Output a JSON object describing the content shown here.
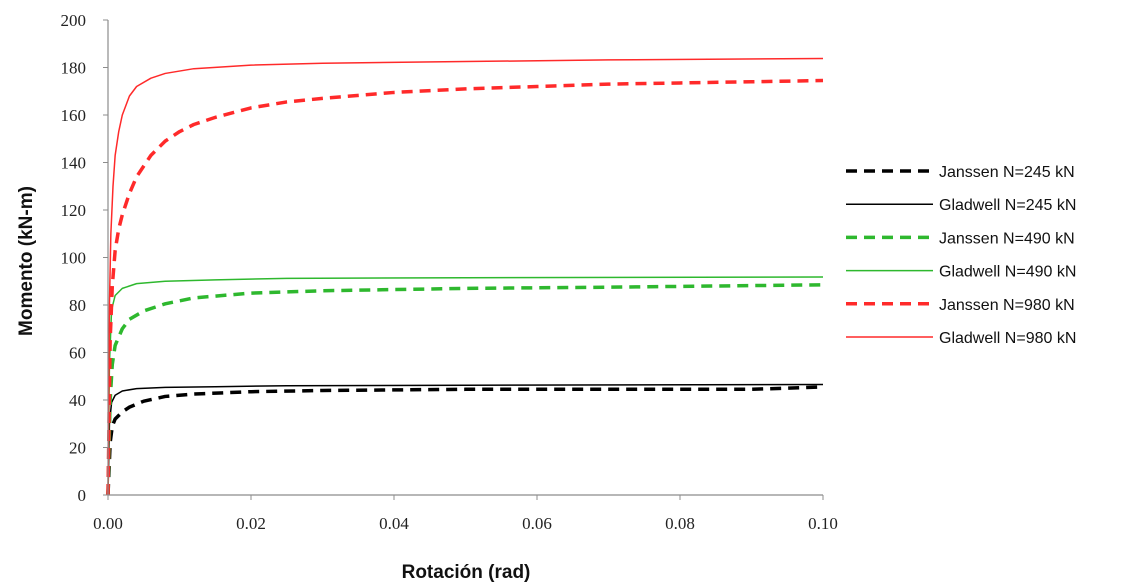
{
  "chart_data": {
    "type": "line",
    "title": "",
    "xlabel": "Rotación (rad)",
    "ylabel": "Momento (kN-m)",
    "xlim": [
      0,
      0.1
    ],
    "ylim": [
      0,
      200
    ],
    "x_ticks": [
      "0.00",
      "0.02",
      "0.04",
      "0.06",
      "0.08",
      "0.10"
    ],
    "y_ticks": [
      "0",
      "20",
      "40",
      "60",
      "80",
      "100",
      "120",
      "140",
      "160",
      "180",
      "200"
    ],
    "grid": false,
    "legend_position": "right",
    "series": [
      {
        "name": "Janssen N=245 kN",
        "color": "#000000",
        "style": "dashed",
        "x": [
          0,
          0.0003,
          0.0006,
          0.001,
          0.002,
          0.003,
          0.005,
          0.008,
          0.012,
          0.02,
          0.03,
          0.05,
          0.07,
          0.09,
          0.1
        ],
        "y": [
          0,
          22,
          29,
          32,
          35,
          37,
          39.5,
          41.5,
          42.5,
          43.5,
          44,
          44.5,
          44.5,
          44.5,
          45.5
        ]
      },
      {
        "name": "Gladwell N=245 kN",
        "color": "#000000",
        "style": "solid",
        "x": [
          0,
          0.0002,
          0.0005,
          0.001,
          0.002,
          0.004,
          0.008,
          0.015,
          0.025,
          0.05,
          0.1
        ],
        "y": [
          0,
          30,
          39,
          42,
          43.8,
          44.8,
          45.3,
          45.6,
          46,
          46.2,
          46.5
        ]
      },
      {
        "name": "Janssen N=490 kN",
        "color": "#2eb82e",
        "style": "dashed",
        "x": [
          0,
          0.0003,
          0.0006,
          0.001,
          0.002,
          0.003,
          0.005,
          0.008,
          0.012,
          0.02,
          0.03,
          0.05,
          0.07,
          0.1
        ],
        "y": [
          0,
          40,
          55,
          63,
          70,
          74,
          77.5,
          80.5,
          83,
          85,
          86,
          87,
          87.5,
          88.5
        ]
      },
      {
        "name": "Gladwell N=490 kN",
        "color": "#2eb82e",
        "style": "solid",
        "x": [
          0,
          0.0002,
          0.0005,
          0.001,
          0.002,
          0.004,
          0.008,
          0.015,
          0.025,
          0.05,
          0.1
        ],
        "y": [
          0,
          55,
          78,
          84,
          87,
          89,
          90,
          90.6,
          91.2,
          91.5,
          91.8
        ]
      },
      {
        "name": "Janssen N=980 kN",
        "color": "#ff2a2a",
        "style": "dashed",
        "x": [
          0,
          0.0003,
          0.0006,
          0.001,
          0.0015,
          0.002,
          0.003,
          0.004,
          0.006,
          0.008,
          0.01,
          0.012,
          0.015,
          0.02,
          0.025,
          0.03,
          0.04,
          0.05,
          0.06,
          0.07,
          0.08,
          0.09,
          0.1
        ],
        "y": [
          0,
          65,
          88,
          103,
          112,
          118,
          127,
          134,
          143,
          149,
          153,
          156,
          159,
          163,
          165.5,
          167,
          169.5,
          171,
          172,
          173,
          173.5,
          174,
          174.5
        ]
      },
      {
        "name": "Gladwell N=980 kN",
        "color": "#ff2a2a",
        "style": "solid",
        "x": [
          0,
          0.0002,
          0.0004,
          0.0007,
          0.001,
          0.0015,
          0.002,
          0.003,
          0.004,
          0.006,
          0.008,
          0.012,
          0.02,
          0.03,
          0.05,
          0.07,
          0.1
        ],
        "y": [
          0,
          80,
          110,
          130,
          143,
          153,
          160,
          168,
          172,
          175.5,
          177.5,
          179.5,
          181,
          181.8,
          182.5,
          183.2,
          183.8
        ]
      }
    ]
  }
}
